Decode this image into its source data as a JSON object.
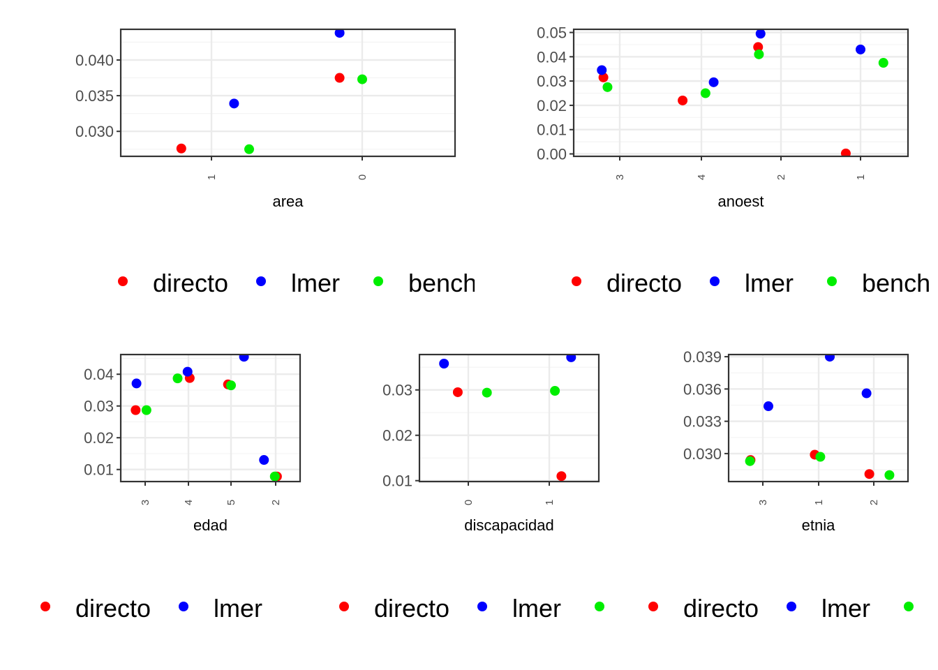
{
  "colors": {
    "directo": "#ff0000",
    "lmer": "#0000ff",
    "bench": "#00ee00",
    "panel_border": "#333333",
    "grid_major": "#ebebeb",
    "grid_minor": "#f4f4f4",
    "text": "#4d4d4d"
  },
  "chart_data": [
    {
      "type": "scatter",
      "xlabel": "area",
      "categories": [
        "1",
        "0"
      ],
      "ylim": [
        0.0265,
        0.0443
      ],
      "yticks": [
        "0.030",
        "0.035",
        "0.040"
      ],
      "series": [
        {
          "name": "directo",
          "points": [
            {
              "category": "1",
              "offset": -0.2,
              "y": 0.0276
            },
            {
              "category": "0",
              "offset": -0.15,
              "y": 0.0375
            }
          ]
        },
        {
          "name": "lmer",
          "points": [
            {
              "category": "1",
              "offset": 0.15,
              "y": 0.0339
            },
            {
              "category": "0",
              "offset": -0.15,
              "y": 0.0438
            }
          ]
        },
        {
          "name": "bench",
          "points": [
            {
              "category": "1",
              "offset": 0.25,
              "y": 0.0275
            },
            {
              "category": "0",
              "offset": 0.0,
              "y": 0.0373
            }
          ]
        }
      ],
      "legend": {
        "labels": [
          "directo",
          "lmer",
          "bench"
        ],
        "visible_text": [
          "directo",
          "lmer",
          "bench"
        ]
      }
    },
    {
      "type": "scatter",
      "xlabel": "anoest",
      "categories": [
        "3",
        "4",
        "2",
        "1"
      ],
      "ylim": [
        -0.001,
        0.0513
      ],
      "yticks": [
        "0.00",
        "0.01",
        "0.02",
        "0.03",
        "0.04",
        "0.05"
      ],
      "series": [
        {
          "name": "directo",
          "points": [
            {
              "category": "3",
              "offset": -0.2,
              "y": 0.0315
            },
            {
              "category": "4",
              "offset": -0.23,
              "y": 0.022
            },
            {
              "category": "2",
              "offset": -0.28,
              "y": 0.044
            },
            {
              "category": "1",
              "offset": -0.18,
              "y": 0.0002
            }
          ]
        },
        {
          "name": "lmer",
          "points": [
            {
              "category": "3",
              "offset": -0.22,
              "y": 0.0345
            },
            {
              "category": "4",
              "offset": 0.15,
              "y": 0.0295
            },
            {
              "category": "2",
              "offset": -0.25,
              "y": 0.0495
            },
            {
              "category": "1",
              "offset": 0.0,
              "y": 0.043
            }
          ]
        },
        {
          "name": "bench",
          "points": [
            {
              "category": "3",
              "offset": -0.15,
              "y": 0.0275
            },
            {
              "category": "4",
              "offset": 0.05,
              "y": 0.025
            },
            {
              "category": "2",
              "offset": -0.27,
              "y": 0.041
            },
            {
              "category": "1",
              "offset": 0.28,
              "y": 0.0375
            }
          ]
        }
      ],
      "legend": {
        "labels": [
          "directo",
          "lmer",
          "bench"
        ],
        "visible_text": [
          "directo",
          "lmer",
          "bench"
        ]
      }
    },
    {
      "type": "scatter",
      "xlabel": "edad",
      "categories": [
        "3",
        "4",
        "5",
        "2"
      ],
      "ylim": [
        0.0062,
        0.0462
      ],
      "yticks": [
        "0.01",
        "0.02",
        "0.03",
        "0.04"
      ],
      "series": [
        {
          "name": "directo",
          "points": [
            {
              "category": "3",
              "offset": -0.22,
              "y": 0.0287
            },
            {
              "category": "4",
              "offset": 0.03,
              "y": 0.0388
            },
            {
              "category": "5",
              "offset": -0.07,
              "y": 0.0368
            },
            {
              "category": "2",
              "offset": 0.03,
              "y": 0.0078
            }
          ]
        },
        {
          "name": "lmer",
          "points": [
            {
              "category": "3",
              "offset": -0.2,
              "y": 0.0371
            },
            {
              "category": "4",
              "offset": -0.02,
              "y": 0.0408
            },
            {
              "category": "5",
              "offset": 0.3,
              "y": 0.0455
            },
            {
              "category": "2",
              "offset": -0.27,
              "y": 0.013
            }
          ]
        },
        {
          "name": "bench",
          "points": [
            {
              "category": "3",
              "offset": 0.03,
              "y": 0.0287
            },
            {
              "category": "4",
              "offset": -0.25,
              "y": 0.0387
            },
            {
              "category": "5",
              "offset": 0.0,
              "y": 0.0365
            },
            {
              "category": "2",
              "offset": -0.02,
              "y": 0.0078
            }
          ]
        }
      ],
      "legend": {
        "labels": [
          "directo",
          "lmer"
        ],
        "visible_text": [
          "directo",
          "lmer"
        ]
      }
    },
    {
      "type": "scatter",
      "xlabel": "discapacidad",
      "categories": [
        "0",
        "1"
      ],
      "ylim": [
        0.0098,
        0.0378
      ],
      "yticks": [
        "0.01",
        "0.02",
        "0.03"
      ],
      "series": [
        {
          "name": "directo",
          "points": [
            {
              "category": "0",
              "offset": -0.13,
              "y": 0.0295
            },
            {
              "category": "1",
              "offset": 0.15,
              "y": 0.011
            }
          ]
        },
        {
          "name": "lmer",
          "points": [
            {
              "category": "0",
              "offset": -0.3,
              "y": 0.0358
            },
            {
              "category": "1",
              "offset": 0.27,
              "y": 0.0372
            }
          ]
        },
        {
          "name": "bench",
          "points": [
            {
              "category": "0",
              "offset": 0.23,
              "y": 0.0294
            },
            {
              "category": "1",
              "offset": 0.07,
              "y": 0.0298
            }
          ]
        }
      ],
      "legend": {
        "labels": [
          "directo",
          "lmer",
          ""
        ],
        "visible_text": [
          "directo",
          "lmer"
        ]
      }
    },
    {
      "type": "scatter",
      "xlabel": "etnia",
      "categories": [
        "3",
        "1",
        "2"
      ],
      "ylim": [
        0.0274,
        0.0392
      ],
      "yticks": [
        "0.030",
        "0.033",
        "0.036",
        "0.039"
      ],
      "series": [
        {
          "name": "directo",
          "points": [
            {
              "category": "3",
              "offset": -0.22,
              "y": 0.0294
            },
            {
              "category": "1",
              "offset": -0.07,
              "y": 0.0299
            },
            {
              "category": "2",
              "offset": -0.08,
              "y": 0.0281
            }
          ]
        },
        {
          "name": "lmer",
          "points": [
            {
              "category": "3",
              "offset": 0.1,
              "y": 0.0344
            },
            {
              "category": "1",
              "offset": 0.2,
              "y": 0.039
            },
            {
              "category": "2",
              "offset": -0.13,
              "y": 0.0356
            }
          ]
        },
        {
          "name": "bench",
          "points": [
            {
              "category": "3",
              "offset": -0.23,
              "y": 0.0293
            },
            {
              "category": "1",
              "offset": 0.03,
              "y": 0.0297
            },
            {
              "category": "2",
              "offset": 0.28,
              "y": 0.028
            }
          ]
        }
      ],
      "legend": {
        "labels": [
          "directo",
          "lmer",
          ""
        ],
        "visible_text": [
          "directo",
          "lmer"
        ]
      }
    }
  ]
}
